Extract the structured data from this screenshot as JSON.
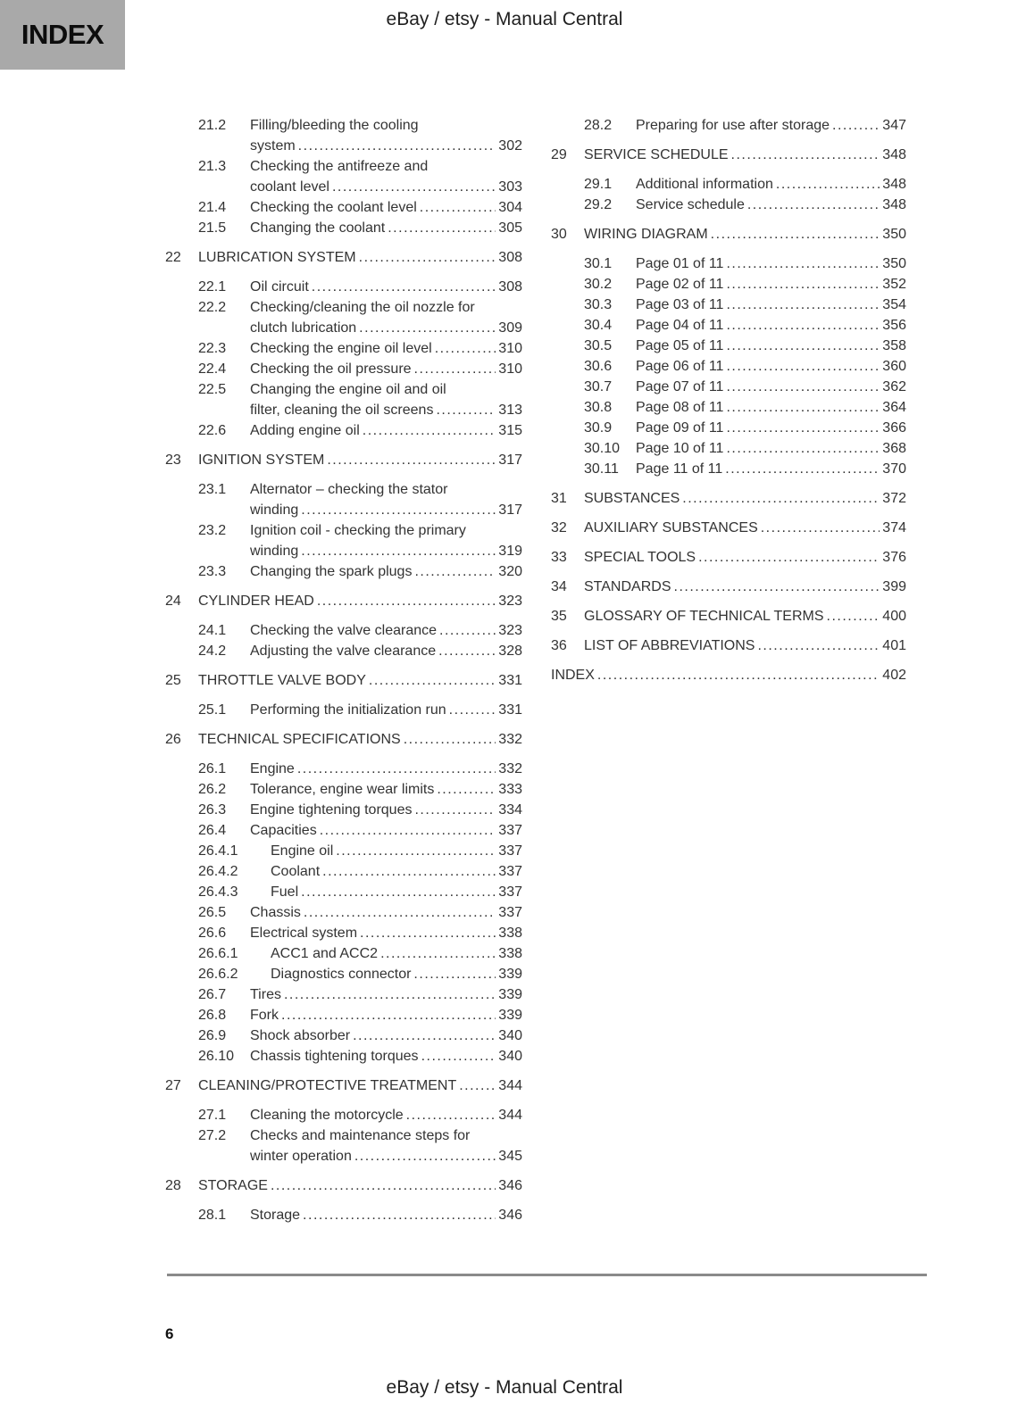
{
  "page": {
    "tab_label": "INDEX",
    "header_title": "eBay / etsy - Manual Central",
    "footer_title": "eBay / etsy - Manual Central",
    "page_number": "6"
  },
  "colors": {
    "tab_background": "#a9a9a9",
    "text": "#333333",
    "rule": "#8a8a8a"
  },
  "toc": {
    "columns": [
      {
        "entries": [
          {
            "level": "section",
            "num": "21.2",
            "lines": [
              "Filling/bleeding the cooling",
              "system"
            ],
            "page": "302"
          },
          {
            "level": "section",
            "num": "21.3",
            "lines": [
              "Checking the antifreeze and",
              "coolant level"
            ],
            "page": "303"
          },
          {
            "level": "section",
            "num": "21.4",
            "lines": [
              "Checking the coolant level"
            ],
            "page": "304"
          },
          {
            "level": "section",
            "num": "21.5",
            "lines": [
              "Changing the coolant"
            ],
            "page": "305"
          },
          {
            "level": "chapter",
            "num": "22",
            "lines": [
              "LUBRICATION SYSTEM"
            ],
            "page": "308"
          },
          {
            "level": "section",
            "num": "22.1",
            "lines": [
              "Oil circuit"
            ],
            "page": "308"
          },
          {
            "level": "section",
            "num": "22.2",
            "lines": [
              "Checking/cleaning the oil nozzle for",
              "clutch lubrication"
            ],
            "page": "309"
          },
          {
            "level": "section",
            "num": "22.3",
            "lines": [
              "Checking the engine oil level"
            ],
            "page": "310"
          },
          {
            "level": "section",
            "num": "22.4",
            "lines": [
              "Checking the oil pressure"
            ],
            "page": "310"
          },
          {
            "level": "section",
            "num": "22.5",
            "lines": [
              "Changing the engine oil and oil",
              "filter, cleaning the oil screens"
            ],
            "page": "313"
          },
          {
            "level": "section",
            "num": "22.6",
            "lines": [
              "Adding engine oil"
            ],
            "page": "315"
          },
          {
            "level": "chapter",
            "num": "23",
            "lines": [
              "IGNITION SYSTEM"
            ],
            "page": "317"
          },
          {
            "level": "section",
            "num": "23.1",
            "lines": [
              "Alternator – checking the stator",
              "winding"
            ],
            "page": "317"
          },
          {
            "level": "section",
            "num": "23.2",
            "lines": [
              "Ignition coil - checking the primary",
              "winding"
            ],
            "page": "319"
          },
          {
            "level": "section",
            "num": "23.3",
            "lines": [
              "Changing the spark plugs"
            ],
            "page": "320"
          },
          {
            "level": "chapter",
            "num": "24",
            "lines": [
              "CYLINDER HEAD"
            ],
            "page": "323"
          },
          {
            "level": "section",
            "num": "24.1",
            "lines": [
              "Checking the valve clearance"
            ],
            "page": "323"
          },
          {
            "level": "section",
            "num": "24.2",
            "lines": [
              "Adjusting the valve clearance"
            ],
            "page": "328"
          },
          {
            "level": "chapter",
            "num": "25",
            "lines": [
              "THROTTLE VALVE BODY"
            ],
            "page": "331"
          },
          {
            "level": "section",
            "num": "25.1",
            "lines": [
              "Performing the initialization run"
            ],
            "page": "331"
          },
          {
            "level": "chapter",
            "num": "26",
            "lines": [
              "TECHNICAL SPECIFICATIONS"
            ],
            "page": "332"
          },
          {
            "level": "section",
            "num": "26.1",
            "lines": [
              "Engine"
            ],
            "page": "332"
          },
          {
            "level": "section",
            "num": "26.2",
            "lines": [
              "Tolerance, engine wear limits"
            ],
            "page": "333"
          },
          {
            "level": "section",
            "num": "26.3",
            "lines": [
              "Engine tightening torques"
            ],
            "page": "334"
          },
          {
            "level": "section",
            "num": "26.4",
            "lines": [
              "Capacities"
            ],
            "page": "337"
          },
          {
            "level": "subsection",
            "num": "26.4.1",
            "lines": [
              "Engine oil"
            ],
            "page": "337"
          },
          {
            "level": "subsection",
            "num": "26.4.2",
            "lines": [
              "Coolant"
            ],
            "page": "337"
          },
          {
            "level": "subsection",
            "num": "26.4.3",
            "lines": [
              "Fuel"
            ],
            "page": "337"
          },
          {
            "level": "section",
            "num": "26.5",
            "lines": [
              "Chassis"
            ],
            "page": "337"
          },
          {
            "level": "section",
            "num": "26.6",
            "lines": [
              "Electrical system"
            ],
            "page": "338"
          },
          {
            "level": "subsection",
            "num": "26.6.1",
            "lines": [
              "ACC1 and ACC2"
            ],
            "page": "338"
          },
          {
            "level": "subsection",
            "num": "26.6.2",
            "lines": [
              "Diagnostics connector"
            ],
            "page": "339"
          },
          {
            "level": "section",
            "num": "26.7",
            "lines": [
              "Tires"
            ],
            "page": "339"
          },
          {
            "level": "section",
            "num": "26.8",
            "lines": [
              "Fork"
            ],
            "page": "339"
          },
          {
            "level": "section",
            "num": "26.9",
            "lines": [
              "Shock absorber"
            ],
            "page": "340"
          },
          {
            "level": "section",
            "num": "26.10",
            "lines": [
              "Chassis tightening torques"
            ],
            "page": "340"
          },
          {
            "level": "chapter",
            "num": "27",
            "lines": [
              "CLEANING/PROTECTIVE TREATMENT"
            ],
            "page": "344"
          },
          {
            "level": "section",
            "num": "27.1",
            "lines": [
              "Cleaning the motorcycle"
            ],
            "page": "344"
          },
          {
            "level": "section",
            "num": "27.2",
            "lines": [
              "Checks and maintenance steps for",
              "winter operation"
            ],
            "page": "345"
          },
          {
            "level": "chapter",
            "num": "28",
            "lines": [
              "STORAGE"
            ],
            "page": "346"
          },
          {
            "level": "section",
            "num": "28.1",
            "lines": [
              "Storage"
            ],
            "page": "346"
          }
        ]
      },
      {
        "entries": [
          {
            "level": "section",
            "num": "28.2",
            "lines": [
              "Preparing for use after storage"
            ],
            "page": "347"
          },
          {
            "level": "chapter",
            "num": "29",
            "lines": [
              "SERVICE SCHEDULE"
            ],
            "page": "348"
          },
          {
            "level": "section",
            "num": "29.1",
            "lines": [
              "Additional information"
            ],
            "page": "348"
          },
          {
            "level": "section",
            "num": "29.2",
            "lines": [
              "Service schedule"
            ],
            "page": "348"
          },
          {
            "level": "chapter",
            "num": "30",
            "lines": [
              "WIRING DIAGRAM"
            ],
            "page": "350"
          },
          {
            "level": "section",
            "num": "30.1",
            "lines": [
              "Page 01 of 11"
            ],
            "page": "350"
          },
          {
            "level": "section",
            "num": "30.2",
            "lines": [
              "Page 02 of 11"
            ],
            "page": "352"
          },
          {
            "level": "section",
            "num": "30.3",
            "lines": [
              "Page 03 of 11"
            ],
            "page": "354"
          },
          {
            "level": "section",
            "num": "30.4",
            "lines": [
              "Page 04 of 11"
            ],
            "page": "356"
          },
          {
            "level": "section",
            "num": "30.5",
            "lines": [
              "Page 05 of 11"
            ],
            "page": "358"
          },
          {
            "level": "section",
            "num": "30.6",
            "lines": [
              "Page 06 of 11"
            ],
            "page": "360"
          },
          {
            "level": "section",
            "num": "30.7",
            "lines": [
              "Page 07 of 11"
            ],
            "page": "362"
          },
          {
            "level": "section",
            "num": "30.8",
            "lines": [
              "Page 08 of 11"
            ],
            "page": "364"
          },
          {
            "level": "section",
            "num": "30.9",
            "lines": [
              "Page 09 of 11"
            ],
            "page": "366"
          },
          {
            "level": "section",
            "num": "30.10",
            "lines": [
              "Page 10 of 11"
            ],
            "page": "368"
          },
          {
            "level": "section",
            "num": "30.11",
            "lines": [
              "Page 11 of 11"
            ],
            "page": "370"
          },
          {
            "level": "chapter",
            "num": "31",
            "lines": [
              "SUBSTANCES"
            ],
            "page": "372"
          },
          {
            "level": "chapter",
            "num": "32",
            "lines": [
              "AUXILIARY SUBSTANCES"
            ],
            "page": "374"
          },
          {
            "level": "chapter",
            "num": "33",
            "lines": [
              "SPECIAL TOOLS"
            ],
            "page": "376"
          },
          {
            "level": "chapter",
            "num": "34",
            "lines": [
              "STANDARDS"
            ],
            "page": "399"
          },
          {
            "level": "chapter",
            "num": "35",
            "lines": [
              "GLOSSARY OF TECHNICAL TERMS"
            ],
            "page": "400"
          },
          {
            "level": "chapter",
            "num": "36",
            "lines": [
              "LIST OF ABBREVIATIONS"
            ],
            "page": "401"
          },
          {
            "level": "plain",
            "num": null,
            "lines": [
              "INDEX"
            ],
            "page": "402"
          }
        ]
      }
    ]
  }
}
